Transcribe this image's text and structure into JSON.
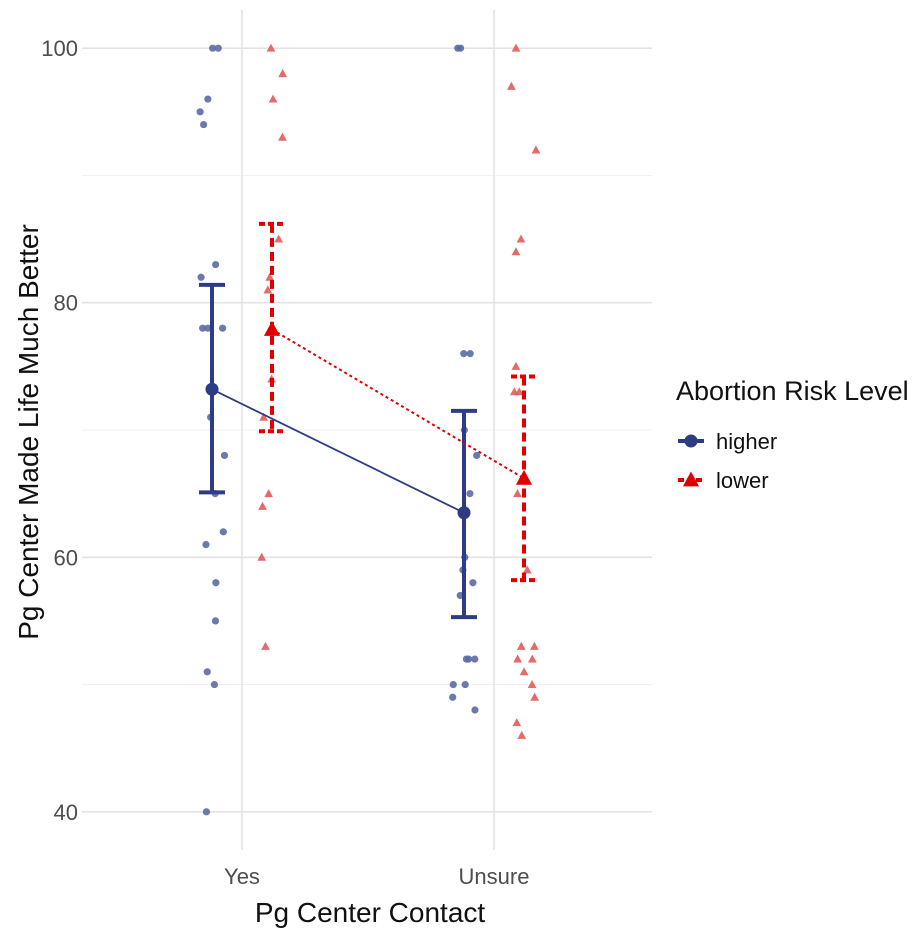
{
  "chart_data": {
    "type": "scatter",
    "title": "",
    "xlabel": "Pg Center Contact",
    "ylabel": "Pg Center Made Life Much Better",
    "categories": [
      "Yes",
      "Unsure"
    ],
    "ylim": [
      37,
      103
    ],
    "yticks": [
      40,
      60,
      80,
      100
    ],
    "grid": true,
    "legend": {
      "title": "Abortion Risk Level",
      "position": "right"
    },
    "series": [
      {
        "name": "higher",
        "color": "#2e3c85",
        "point_color": "#5b6aa3",
        "marker": "circle",
        "line_style": "solid",
        "summary": [
          {
            "category": "Yes",
            "mean": 73.2,
            "lower": 65.1,
            "upper": 81.4
          },
          {
            "category": "Unsure",
            "mean": 63.5,
            "lower": 55.3,
            "upper": 71.5
          }
        ],
        "points": [
          {
            "category": "Yes",
            "values": [
              100,
              100,
              96,
              95,
              94,
              83,
              82,
              78,
              78,
              78,
              71,
              68,
              65,
              62,
              61,
              58,
              55,
              51,
              50,
              40
            ]
          },
          {
            "category": "Unsure",
            "values": [
              100,
              100,
              76,
              76,
              70,
              68,
              65,
              60,
              59,
              58,
              57,
              52,
              52,
              52,
              50,
              50,
              49,
              48
            ]
          }
        ]
      },
      {
        "name": "lower",
        "color": "#e00000",
        "point_color": "#e35a5a",
        "marker": "triangle",
        "line_style": "dashed",
        "summary": [
          {
            "category": "Yes",
            "mean": 77.9,
            "lower": 69.9,
            "upper": 86.2
          },
          {
            "category": "Unsure",
            "mean": 66.2,
            "lower": 58.2,
            "upper": 74.2
          }
        ],
        "points": [
          {
            "category": "Yes",
            "values": [
              100,
              98,
              96,
              93,
              85,
              82,
              81,
              74,
              71,
              65,
              64,
              60,
              53
            ]
          },
          {
            "category": "Unsure",
            "values": [
              100,
              97,
              92,
              85,
              84,
              75,
              73,
              73,
              65,
              59,
              53,
              53,
              52,
              52,
              51,
              50,
              49,
              47,
              46
            ]
          }
        ]
      }
    ]
  }
}
